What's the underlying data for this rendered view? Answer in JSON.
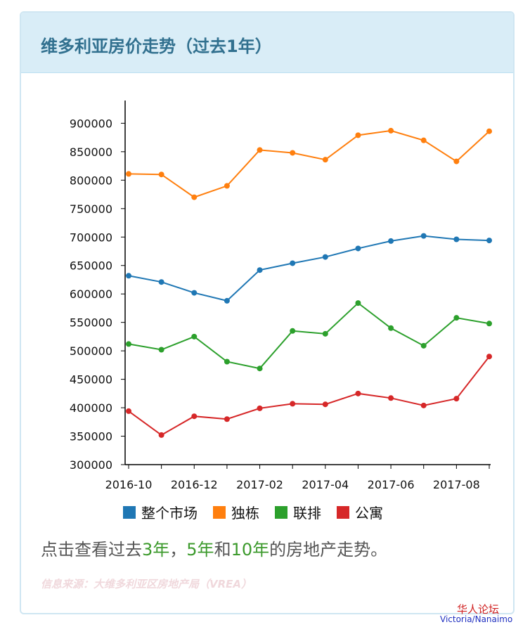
{
  "chart_data": {
    "type": "line",
    "title": "维多利亚房价走势（过去1年）",
    "categories": [
      "2016-10",
      null,
      "2016-12",
      null,
      "2017-02",
      null,
      "2017-04",
      null,
      "2017-06",
      null,
      "2017-08",
      null
    ],
    "series": [
      {
        "name": "整个市场",
        "color": "#1f77b4",
        "values": [
          632000,
          621000,
          602000,
          588000,
          642000,
          654000,
          665000,
          680000,
          693000,
          702000,
          696000,
          694000
        ]
      },
      {
        "name": "独栋",
        "color": "#ff7f0e",
        "values": [
          811000,
          810000,
          770000,
          790000,
          853000,
          848000,
          836000,
          879000,
          887000,
          870000,
          833000,
          886000
        ]
      },
      {
        "name": "联排",
        "color": "#2ca02c",
        "values": [
          512000,
          502000,
          525000,
          481000,
          469000,
          535000,
          530000,
          584000,
          540000,
          509000,
          558000,
          548000
        ]
      },
      {
        "name": "公寓",
        "color": "#d62728",
        "values": [
          394000,
          352000,
          385000,
          380000,
          399000,
          407000,
          406000,
          425000,
          417000,
          404000,
          416000,
          490000
        ]
      }
    ],
    "ylim": [
      300000,
      940000
    ],
    "yticks": [
      300000,
      350000,
      400000,
      450000,
      500000,
      550000,
      600000,
      650000,
      700000,
      750000,
      800000,
      850000,
      900000
    ]
  },
  "note": [
    "点击查看过去",
    "3年",
    "，",
    "5年",
    "和",
    "10年",
    "的房地产走势。"
  ],
  "source": "信息来源：大维多利亚区房地产局（VREA）",
  "watermark": [
    "华人论坛",
    "Victoria/Nanaimo"
  ]
}
